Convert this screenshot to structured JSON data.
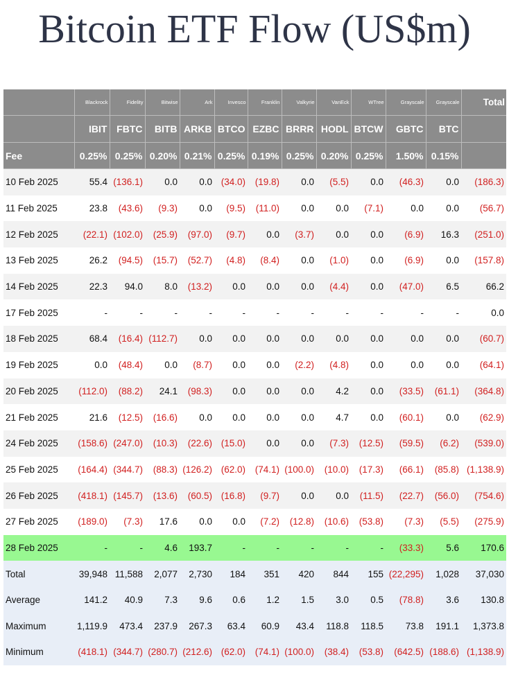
{
  "title": "Bitcoin ETF Flow (US$m)",
  "issuers": [
    "Blackrock",
    "Fidelity",
    "Bitwise",
    "Ark",
    "Invesco",
    "Franklin",
    "Valkyrie",
    "VanEck",
    "WTree",
    "Grayscale",
    "Grayscale"
  ],
  "total_label": "Total",
  "tickers": [
    "IBIT",
    "FBTC",
    "BITB",
    "ARKB",
    "BTCO",
    "EZBC",
    "BRRR",
    "HODL",
    "BTCW",
    "GBTC",
    "BTC"
  ],
  "fee_label": "Fee",
  "fees": [
    "0.25%",
    "0.25%",
    "0.20%",
    "0.21%",
    "0.25%",
    "0.19%",
    "0.25%",
    "0.20%",
    "0.25%",
    "1.50%",
    "0.15%"
  ],
  "rows": [
    {
      "date": "10 Feb 2025",
      "values": [
        "55.4",
        "(136.1)",
        "0.0",
        "0.0",
        "(34.0)",
        "(19.8)",
        "0.0",
        "(5.5)",
        "0.0",
        "(46.3)",
        "0.0",
        "(186.3)"
      ]
    },
    {
      "date": "11 Feb 2025",
      "values": [
        "23.8",
        "(43.6)",
        "(9.3)",
        "0.0",
        "(9.5)",
        "(11.0)",
        "0.0",
        "0.0",
        "(7.1)",
        "0.0",
        "0.0",
        "(56.7)"
      ]
    },
    {
      "date": "12 Feb 2025",
      "values": [
        "(22.1)",
        "(102.0)",
        "(25.9)",
        "(97.0)",
        "(9.7)",
        "0.0",
        "(3.7)",
        "0.0",
        "0.0",
        "(6.9)",
        "16.3",
        "(251.0)"
      ]
    },
    {
      "date": "13 Feb 2025",
      "values": [
        "26.2",
        "(94.5)",
        "(15.7)",
        "(52.7)",
        "(4.8)",
        "(8.4)",
        "0.0",
        "(1.0)",
        "0.0",
        "(6.9)",
        "0.0",
        "(157.8)"
      ]
    },
    {
      "date": "14 Feb 2025",
      "values": [
        "22.3",
        "94.0",
        "8.0",
        "(13.2)",
        "0.0",
        "0.0",
        "0.0",
        "(4.4)",
        "0.0",
        "(47.0)",
        "6.5",
        "66.2"
      ]
    },
    {
      "date": "17 Feb 2025",
      "values": [
        "-",
        "-",
        "-",
        "-",
        "-",
        "-",
        "-",
        "-",
        "-",
        "-",
        "-",
        "0.0"
      ]
    },
    {
      "date": "18 Feb 2025",
      "values": [
        "68.4",
        "(16.4)",
        "(112.7)",
        "0.0",
        "0.0",
        "0.0",
        "0.0",
        "0.0",
        "0.0",
        "0.0",
        "0.0",
        "(60.7)"
      ]
    },
    {
      "date": "19 Feb 2025",
      "values": [
        "0.0",
        "(48.4)",
        "0.0",
        "(8.7)",
        "0.0",
        "0.0",
        "(2.2)",
        "(4.8)",
        "0.0",
        "0.0",
        "0.0",
        "(64.1)"
      ]
    },
    {
      "date": "20 Feb 2025",
      "values": [
        "(112.0)",
        "(88.2)",
        "24.1",
        "(98.3)",
        "0.0",
        "0.0",
        "0.0",
        "4.2",
        "0.0",
        "(33.5)",
        "(61.1)",
        "(364.8)"
      ]
    },
    {
      "date": "21 Feb 2025",
      "values": [
        "21.6",
        "(12.5)",
        "(16.6)",
        "0.0",
        "0.0",
        "0.0",
        "0.0",
        "4.7",
        "0.0",
        "(60.1)",
        "0.0",
        "(62.9)"
      ]
    },
    {
      "date": "24 Feb 2025",
      "values": [
        "(158.6)",
        "(247.0)",
        "(10.3)",
        "(22.6)",
        "(15.0)",
        "0.0",
        "0.0",
        "(7.3)",
        "(12.5)",
        "(59.5)",
        "(6.2)",
        "(539.0)"
      ]
    },
    {
      "date": "25 Feb 2025",
      "values": [
        "(164.4)",
        "(344.7)",
        "(88.3)",
        "(126.2)",
        "(62.0)",
        "(74.1)",
        "(100.0)",
        "(10.0)",
        "(17.3)",
        "(66.1)",
        "(85.8)",
        "(1,138.9)"
      ]
    },
    {
      "date": "26 Feb 2025",
      "values": [
        "(418.1)",
        "(145.7)",
        "(13.6)",
        "(60.5)",
        "(16.8)",
        "(9.7)",
        "0.0",
        "0.0",
        "(11.5)",
        "(22.7)",
        "(56.0)",
        "(754.6)"
      ]
    },
    {
      "date": "27 Feb 2025",
      "values": [
        "(189.0)",
        "(7.3)",
        "17.6",
        "0.0",
        "0.0",
        "(7.2)",
        "(12.8)",
        "(10.6)",
        "(53.8)",
        "(7.3)",
        "(5.5)",
        "(275.9)"
      ]
    },
    {
      "date": "28 Feb 2025",
      "values": [
        "-",
        "-",
        "4.6",
        "193.7",
        "-",
        "-",
        "-",
        "-",
        "-",
        "(33.3)",
        "5.6",
        "170.6"
      ],
      "highlight": true
    }
  ],
  "summary": [
    {
      "label": "Total",
      "values": [
        "39,948",
        "11,588",
        "2,077",
        "2,730",
        "184",
        "351",
        "420",
        "844",
        "155",
        "(22,295)",
        "1,028",
        "37,030"
      ]
    },
    {
      "label": "Average",
      "values": [
        "141.2",
        "40.9",
        "7.3",
        "9.6",
        "0.6",
        "1.2",
        "1.5",
        "3.0",
        "0.5",
        "(78.8)",
        "3.6",
        "130.8"
      ]
    },
    {
      "label": "Maximum",
      "values": [
        "1,119.9",
        "473.4",
        "237.9",
        "267.3",
        "63.4",
        "60.9",
        "43.4",
        "118.8",
        "118.5",
        "73.8",
        "191.1",
        "1,373.8"
      ]
    },
    {
      "label": "Minimum",
      "values": [
        "(418.1)",
        "(344.7)",
        "(280.7)",
        "(212.6)",
        "(62.0)",
        "(74.1)",
        "(100.0)",
        "(38.4)",
        "(53.8)",
        "(642.5)",
        "(188.6)",
        "(1,138.9)"
      ]
    }
  ]
}
